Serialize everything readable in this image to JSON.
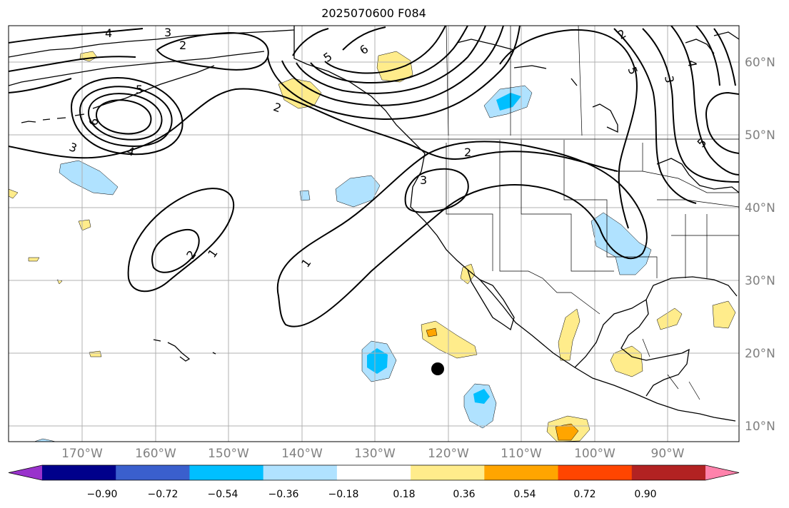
{
  "title": "2025070600 F084",
  "map": {
    "projection": "PlateCarree",
    "lon_range": [
      "180°W",
      "77°W"
    ],
    "lat_range": [
      "8°N",
      "66°N"
    ],
    "gridlines": true,
    "lat_labels": [
      "60°N",
      "50°N",
      "40°N",
      "30°N",
      "20°N",
      "10°N"
    ],
    "lon_labels": [
      "170°W",
      "160°W",
      "150°W",
      "140°W",
      "130°W",
      "120°W",
      "110°W",
      "100°W",
      "90°W"
    ],
    "contour_labels": [
      "1",
      "1",
      "2",
      "2",
      "2",
      "2",
      "3",
      "3",
      "3",
      "4",
      "4",
      "5",
      "5",
      "5",
      "6",
      "6",
      "2",
      "3",
      "4",
      "5"
    ],
    "marker": {
      "lon": "122°W",
      "lat": "18°N",
      "color": "#000000"
    }
  },
  "colorbar": {
    "tick_labels": [
      "−0.90",
      "−0.72",
      "−0.54",
      "−0.36",
      "−0.18",
      "0.18",
      "0.36",
      "0.54",
      "0.72",
      "0.90"
    ],
    "colors": [
      "#9932cc",
      "#00008b",
      "#3a5fcd",
      "#00bfff",
      "#b0e2ff",
      "#ffffff",
      "#ffec8b",
      "#ffa500",
      "#ff4500",
      "#b22222",
      "#ff82ab"
    ]
  }
}
